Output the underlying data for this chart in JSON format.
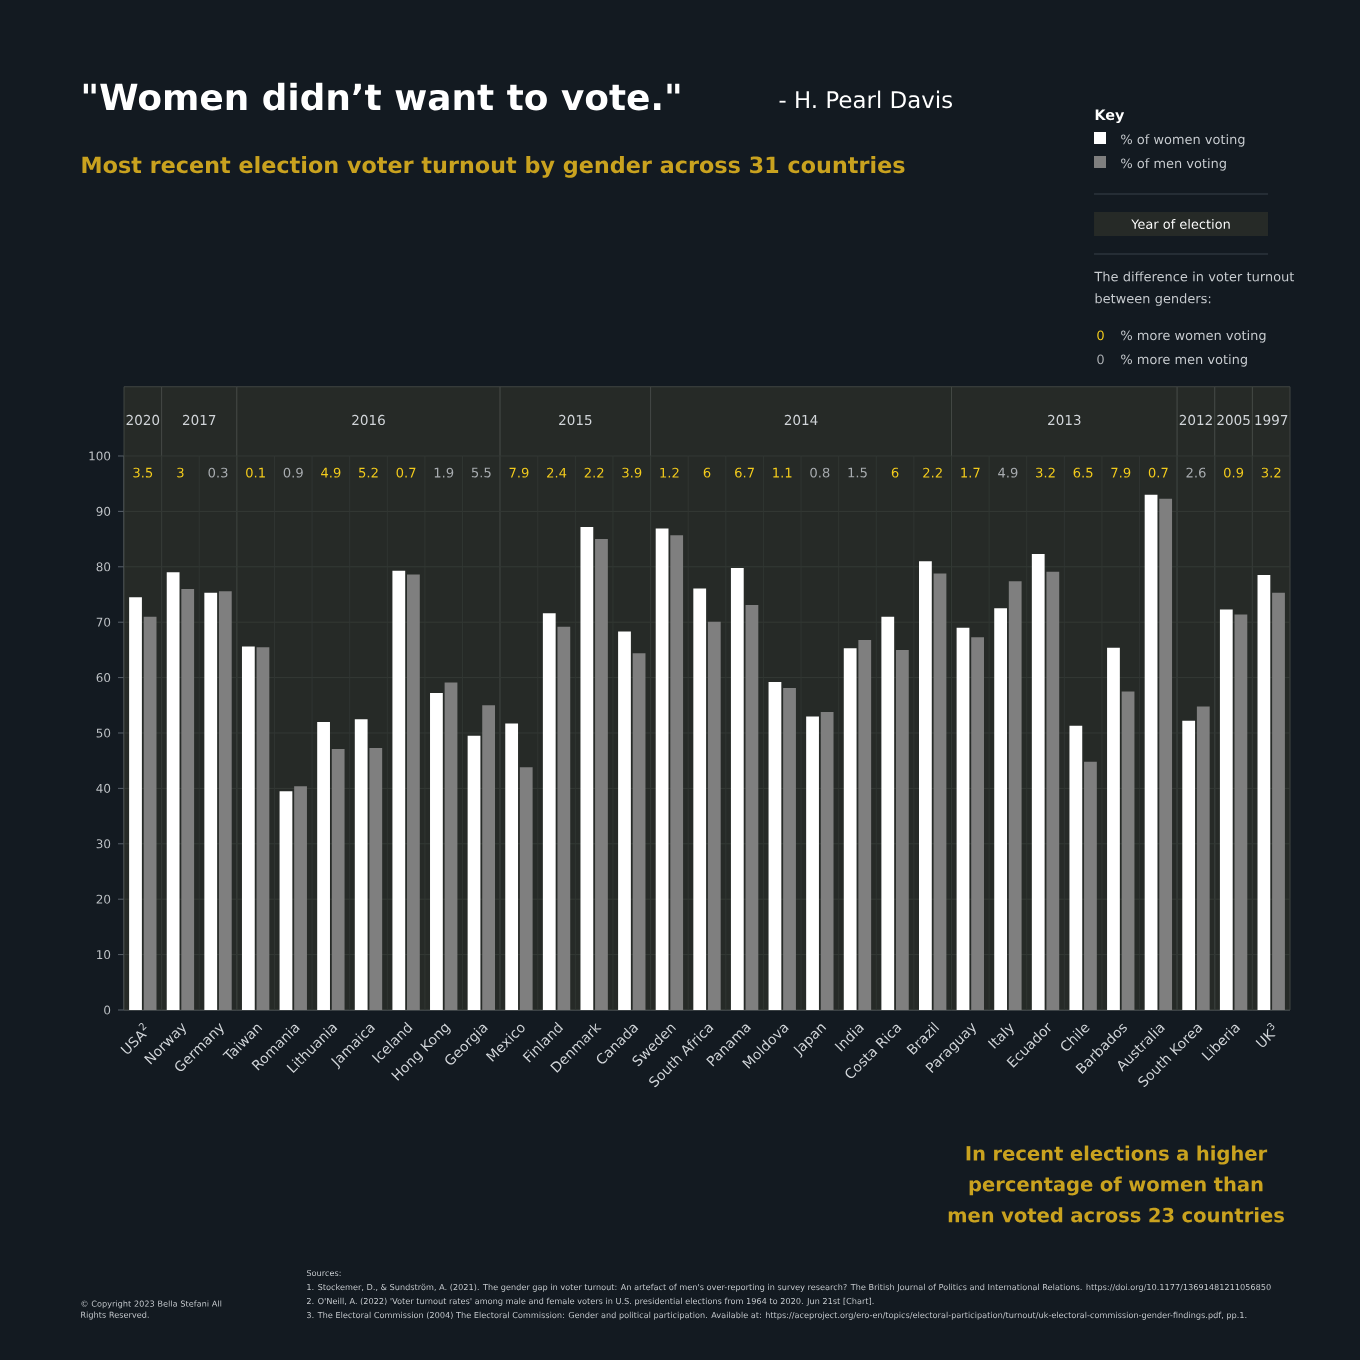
{
  "chart_data": {
    "type": "bar",
    "title": "\"Women didn’t want to vote.\"",
    "subtitle": "Most recent election voter turnout by gender across 31 countries",
    "categories": [
      "USA$^{2}$",
      "Norway",
      "Germany",
      "Taiwan",
      "Romania",
      "Lithuania",
      "Jamaica",
      "Iceland",
      "Hong Kong",
      "Georgia",
      "Mexico",
      "Finland",
      "Denmark",
      "Canada",
      "Sweden",
      "South Africa",
      "Panama",
      "Moldova",
      "Japan",
      "India",
      "Costa Rica",
      "Brazil",
      "Paraguay",
      "Italy",
      "Ecuador",
      "Chile",
      "Barbados",
      "Australia",
      "South Korea",
      "Liberia",
      "UK$^{3}$"
    ],
    "series": [
      {
        "name": "% of women voting",
        "color": "#ffffff",
        "values": [
          74.5,
          79,
          75.3,
          65.6,
          39.5,
          52,
          52.5,
          79.3,
          57.2,
          49.5,
          51.7,
          71.6,
          87.2,
          68.3,
          86.9,
          76.1,
          79.8,
          59.2,
          53,
          65.3,
          71,
          81,
          69,
          72.5,
          82.3,
          51.3,
          65.4,
          93,
          52.2,
          72.3,
          78.5
        ]
      },
      {
        "name": "% of men voting",
        "color": "#7f7f7f",
        "values": [
          71,
          76,
          75.6,
          65.5,
          40.4,
          47.1,
          47.3,
          78.6,
          59.1,
          55,
          43.8,
          69.2,
          85,
          64.4,
          85.7,
          70.1,
          73.1,
          58.1,
          53.8,
          66.8,
          65,
          78.8,
          67.3,
          77.4,
          79.1,
          44.8,
          57.5,
          92.3,
          54.8,
          71.4,
          75.3
        ]
      }
    ],
    "ylim": [
      0,
      100
    ],
    "yticks": [
      0,
      10,
      20,
      30,
      40,
      50,
      60,
      70,
      80,
      90,
      100
    ],
    "grid": true,
    "legend": "top right",
    "legend_title": "Key",
    "bands": [
      {
        "axis": "x",
        "from": "USA$^{2}$",
        "to": "USA$^{2}$",
        "label": "2020",
        "color": "#262a27"
      },
      {
        "axis": "x",
        "from": "Norway",
        "to": "Germany",
        "label": "2017",
        "color": "#262a27"
      },
      {
        "axis": "x",
        "from": "Taiwan",
        "to": "Georgia",
        "label": "2016",
        "color": "#262a27"
      },
      {
        "axis": "x",
        "from": "Mexico",
        "to": "Canada",
        "label": "2015",
        "color": "#262a27"
      },
      {
        "axis": "x",
        "from": "Sweden",
        "to": "Brazil",
        "label": "2014",
        "color": "#262a27"
      },
      {
        "axis": "x",
        "from": "Paraguay",
        "to": "Australia",
        "label": "2013",
        "color": "#262a27"
      },
      {
        "axis": "x",
        "from": "South Korea",
        "to": "South Korea",
        "label": "2012",
        "color": "#262a27"
      },
      {
        "axis": "x",
        "from": "Liberia",
        "to": "Liberia",
        "label": "2005",
        "color": "#262a27"
      },
      {
        "axis": "x",
        "from": "UK$^{3}$",
        "to": "UK$^{3}$",
        "label": "1997",
        "color": "#262a27"
      }
    ],
    "annotations": [
      "- H. Pearl Davis",
      "3.5",
      "3",
      "0.3",
      "0.1",
      "0.9",
      "4.9",
      "5.2",
      "0.7",
      "1.9",
      "5.5",
      "7.9",
      "2.4",
      "2.2",
      "3.9",
      "1.2",
      "6",
      "6.7",
      "1.1",
      "0.8",
      "1.5",
      "6",
      "2.2",
      "1.7",
      "4.9",
      "3.2",
      "6.5",
      "7.9",
      "0.7",
      "2.6",
      "0.9",
      "3.2",
      "Year of election",
      "The difference in voter turnout between genders:",
      "0",
      "% more women voting",
      "0",
      "% more men voting",
      "In recent elections a higher percentage of women than men voted across 23 countries",
      "Sources:",
      "1. Stockemer, D., & Sundström, A. (2021). The gender gap in voter turnout: An artefact of men's over-reporting in survey research? The British Journal of Politics and International Relations. https://doi.org/10.1177/13691481211056850",
      "2. O'Neill, A. (2022) 'Voter turnout rates' among male and female voters in U.S. presidential elections from 1964 to 2020. Jun 21st [Chart].",
      "3. The Electoral Commission (2004) The Electoral Commission: Gender and political participation. Available at: https://aceproject.org/ero-en/topics/electoral-participation/turnout/uk-electoral-commission-gender-findings.pdf, pp.1.",
      "© Copyright 2023 Bella Stefani All Rights Reserved."
    ]
  }
}
